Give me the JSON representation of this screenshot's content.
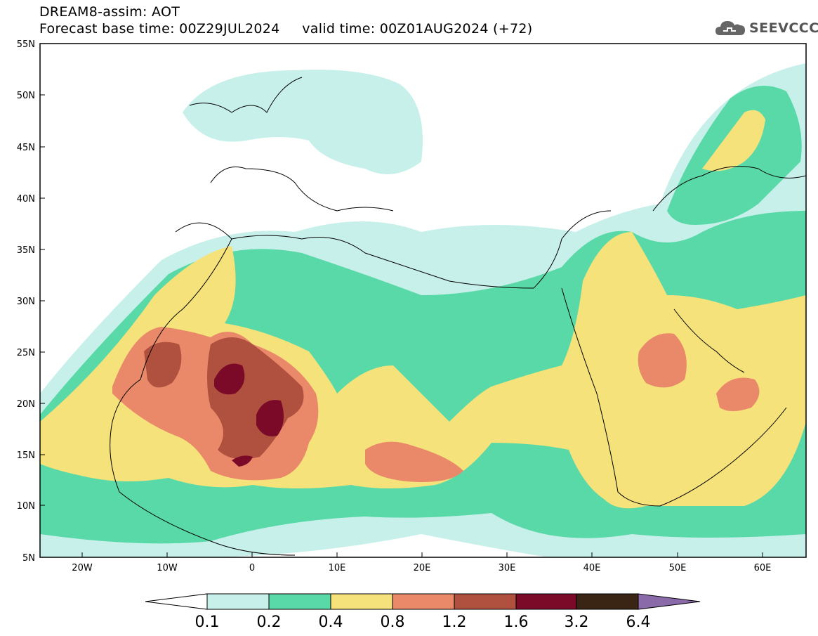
{
  "header": {
    "title_line1": "DREAM8-assim: AOT",
    "title_line2": "Forecast base time: 00Z29JUL2024     valid time: 00Z01AUG2024 (+72)"
  },
  "logo": {
    "text": "SEEVCCC",
    "icon": "cloud-icon"
  },
  "map": {
    "lat_ticks": [
      "55N",
      "50N",
      "45N",
      "40N",
      "35N",
      "30N",
      "25N",
      "20N",
      "15N",
      "10N",
      "5N"
    ],
    "lon_ticks": [
      "20W",
      "10W",
      "0",
      "10E",
      "20E",
      "30E",
      "40E",
      "50E",
      "60E"
    ]
  },
  "legend": {
    "labels": [
      "0.1",
      "0.2",
      "0.4",
      "0.8",
      "1.2",
      "1.6",
      "3.2",
      "6.4"
    ],
    "colors": [
      "#c8f0ea",
      "#5ad9a8",
      "#f5e27a",
      "#e9896a",
      "#b0503e",
      "#7a0a28",
      "#3a2414",
      "#8a6aa8"
    ]
  },
  "colors": {
    "c01": "#c8f0ea",
    "c02": "#5ad9a8",
    "c04": "#f5e27a",
    "c08": "#e9896a",
    "c12": "#b0503e",
    "c16": "#7a0a28"
  }
}
